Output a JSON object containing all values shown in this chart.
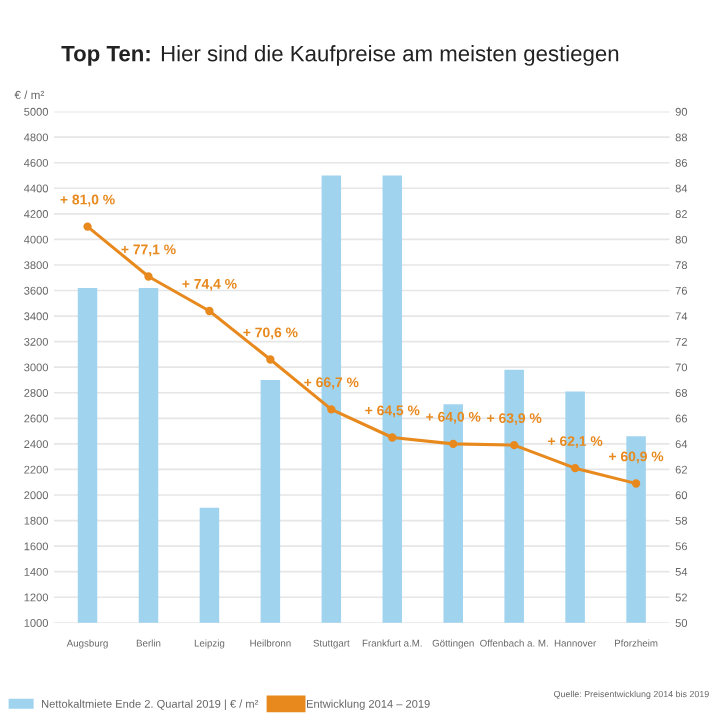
{
  "chart_data": {
    "type": "bar",
    "title": "Top Ten: Hier sind die Kaufpreise am meisten gestiegen",
    "ylabel": "€ / m²",
    "categories": [
      "Augsburg",
      "Berlin",
      "Leipzig",
      "Heilbronn",
      "Stuttgart",
      "Frankfurt a.M.",
      "Göttingen",
      "Offenbach a. M.",
      "Hannover",
      "Pforzheim"
    ],
    "series": [
      {
        "name": "Nettokaltmiete Ende 2. Quartal 2019 | € / m²",
        "color": "#9fd3ee",
        "values": [
          3620,
          3620,
          1900,
          2900,
          4500,
          4500,
          2710,
          2980,
          2810,
          2460
        ]
      },
      {
        "name": "Entwicklung 2014 – 2019",
        "type": "line",
        "axis": "y2",
        "color": "#e8891e",
        "values": [
          81.0,
          77.1,
          74.4,
          70.6,
          66.7,
          64.5,
          64.0,
          63.9,
          62.1,
          60.9
        ],
        "value_labels": [
          "+ 81,0 %",
          "+ 77,1 %",
          "+ 74,4 %",
          "+ 70,6 %",
          "+ 66,7 %",
          "+ 64,5 %",
          "+ 64,0 %",
          "+ 63,9 %",
          "+ 62,1 %",
          "+ 60,9 %"
        ]
      }
    ],
    "ylim": [
      1000,
      5000
    ],
    "yticks": [
      1000,
      1200,
      1400,
      1600,
      1800,
      2000,
      2200,
      2400,
      2600,
      2800,
      3000,
      3200,
      3400,
      3600,
      3800,
      4000,
      4200,
      4400,
      4600,
      4800,
      5000
    ],
    "y2lim": [
      50,
      90
    ],
    "y2ticks": [
      50,
      52,
      54,
      56,
      58,
      60,
      62,
      64,
      66,
      68,
      70,
      72,
      74,
      76,
      78,
      80,
      82,
      84,
      86,
      88,
      90
    ],
    "grid": "y",
    "legend": "bottom",
    "marker": "circle",
    "line_style": "solid",
    "annotations": [
      "Quelle: Preisentwicklung 2014 bis 2019"
    ]
  }
}
